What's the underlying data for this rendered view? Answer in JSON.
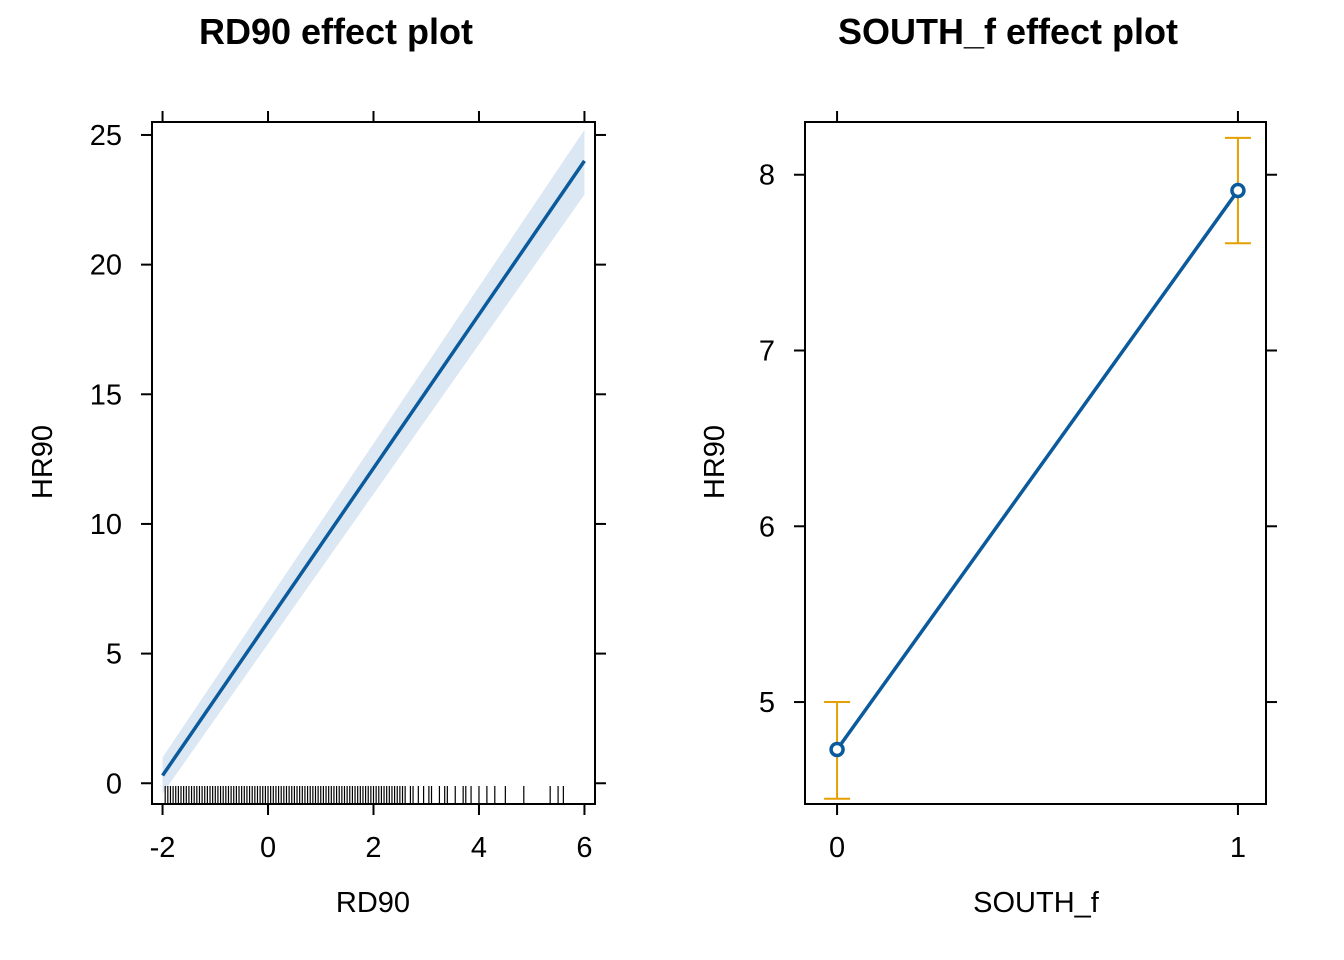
{
  "chart_data": [
    {
      "type": "line",
      "title": "RD90 effect plot",
      "xlabel": "RD90",
      "ylabel": "HR90",
      "xlim": [
        -2.2,
        6.2
      ],
      "ylim": [
        -0.8,
        25.5
      ],
      "xticks": [
        -2,
        0,
        2,
        4,
        6
      ],
      "xtick_labels": [
        "-2",
        "0",
        "2",
        "4",
        "6"
      ],
      "yticks": [
        0,
        5,
        10,
        15,
        20,
        25
      ],
      "ytick_labels": [
        "0",
        "5",
        "10",
        "15",
        "20",
        "25"
      ],
      "grid": false,
      "series": [
        {
          "x": [
            -2,
            6
          ],
          "y": [
            0.3,
            24.0
          ],
          "lower": [
            -0.4,
            22.7
          ],
          "upper": [
            1.0,
            25.2
          ],
          "color": "#0b5a9c",
          "band_color": "#dbe7f3"
        }
      ],
      "rug": [
        -1.95,
        -1.9,
        -1.85,
        -1.8,
        -1.75,
        -1.7,
        -1.65,
        -1.6,
        -1.55,
        -1.5,
        -1.45,
        -1.4,
        -1.35,
        -1.3,
        -1.25,
        -1.2,
        -1.15,
        -1.1,
        -1.05,
        -1.0,
        -0.95,
        -0.9,
        -0.85,
        -0.8,
        -0.75,
        -0.7,
        -0.65,
        -0.6,
        -0.55,
        -0.5,
        -0.45,
        -0.4,
        -0.35,
        -0.3,
        -0.25,
        -0.2,
        -0.15,
        -0.1,
        -0.05,
        0.0,
        0.05,
        0.1,
        0.15,
        0.2,
        0.25,
        0.3,
        0.35,
        0.4,
        0.45,
        0.5,
        0.55,
        0.6,
        0.65,
        0.7,
        0.75,
        0.8,
        0.85,
        0.9,
        0.95,
        1.0,
        1.05,
        1.1,
        1.15,
        1.2,
        1.25,
        1.3,
        1.35,
        1.4,
        1.45,
        1.5,
        1.55,
        1.6,
        1.65,
        1.7,
        1.75,
        1.8,
        1.85,
        1.9,
        1.95,
        2.0,
        2.05,
        2.1,
        2.15,
        2.2,
        2.25,
        2.3,
        2.35,
        2.4,
        2.45,
        2.5,
        2.55,
        2.6,
        2.7,
        2.75,
        2.85,
        2.95,
        3.05,
        3.1,
        3.25,
        3.35,
        3.4,
        3.55,
        3.7,
        3.75,
        3.85,
        4.0,
        4.15,
        4.3,
        4.5,
        4.85,
        5.35,
        5.5,
        5.6
      ]
    },
    {
      "type": "line",
      "title": "SOUTH_f effect plot",
      "xlabel": "SOUTH_f",
      "ylabel": "HR90",
      "categories": [
        "0",
        "1"
      ],
      "xlim": [
        -0.08,
        1.07
      ],
      "ylim": [
        4.42,
        8.3
      ],
      "yticks": [
        5,
        6,
        7,
        8
      ],
      "ytick_labels": [
        "5",
        "6",
        "7",
        "8"
      ],
      "grid": false,
      "series": [
        {
          "x": [
            0,
            1
          ],
          "y": [
            4.73,
            7.91
          ],
          "lower": [
            4.45,
            7.61
          ],
          "upper": [
            5.0,
            8.21
          ],
          "color": "#0b5a9c",
          "errorbar_color": "#e69f00"
        }
      ]
    }
  ]
}
